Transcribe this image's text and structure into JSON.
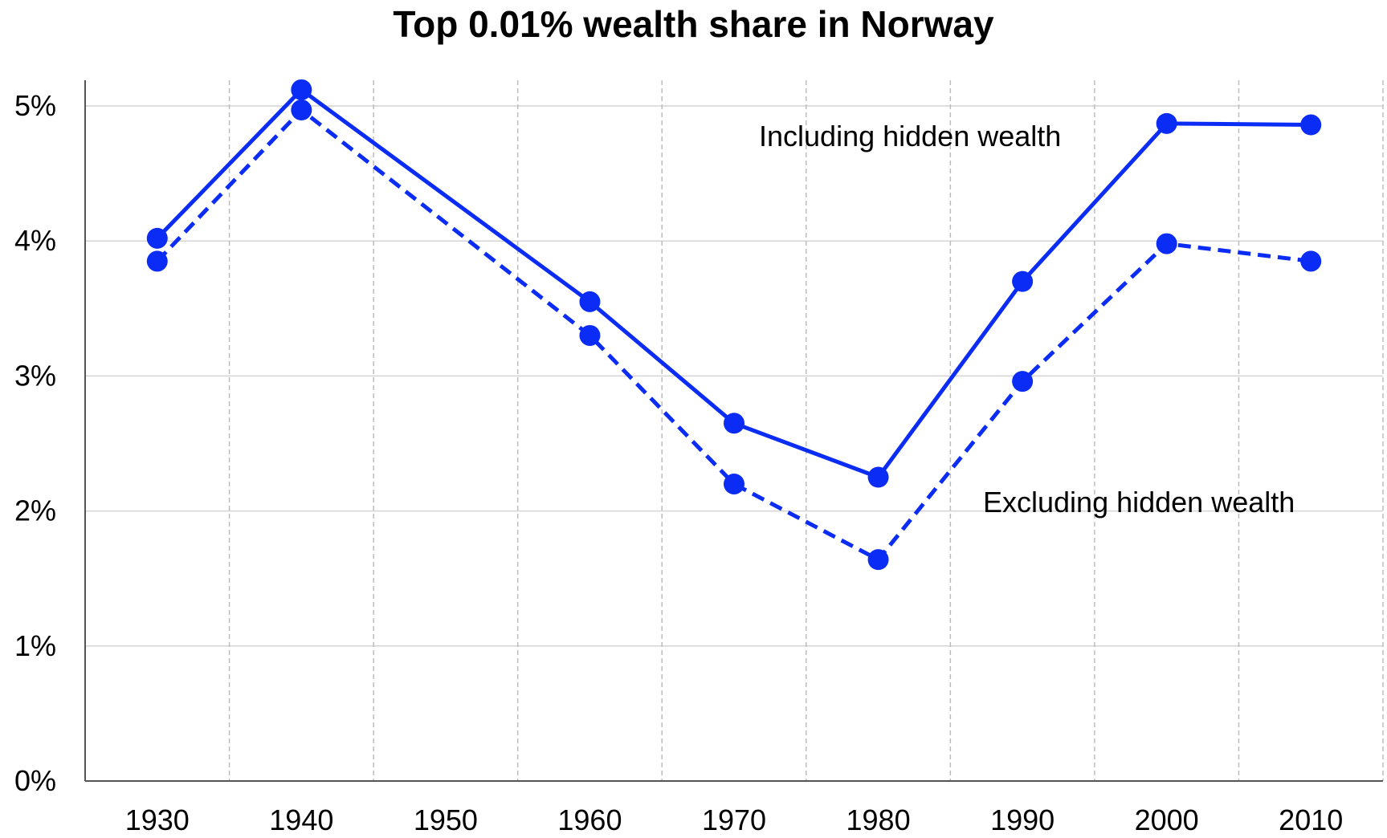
{
  "chart_data": {
    "type": "line",
    "title": "Top 0.01% wealth share in Norway",
    "xlabel": "",
    "ylabel": "",
    "x": [
      1930,
      1940,
      1960,
      1970,
      1980,
      1990,
      2000,
      2010
    ],
    "x_ticks": [
      "1930",
      "1940",
      "1950",
      "1960",
      "1970",
      "1980",
      "1990",
      "2000",
      "2010"
    ],
    "y_ticks": [
      "0%",
      "1%",
      "2%",
      "3%",
      "4%",
      "5%"
    ],
    "xlim": [
      1925,
      2015
    ],
    "ylim": [
      0,
      5.2
    ],
    "series": [
      {
        "values": [
          4.02,
          5.12,
          3.55,
          2.65,
          2.25,
          3.7,
          4.87,
          4.86
        ],
        "style": "solid",
        "color": "#0a2cf5",
        "annotation": "Including hidden wealth"
      },
      {
        "values": [
          3.85,
          4.97,
          3.3,
          2.2,
          1.64,
          2.96,
          3.98,
          3.85
        ],
        "style": "dashed",
        "color": "#0a2cf5",
        "annotation": "Excluding hidden wealth"
      }
    ],
    "grid": {
      "horizontal": "solid",
      "vertical": "dashed"
    },
    "legend": "none"
  }
}
